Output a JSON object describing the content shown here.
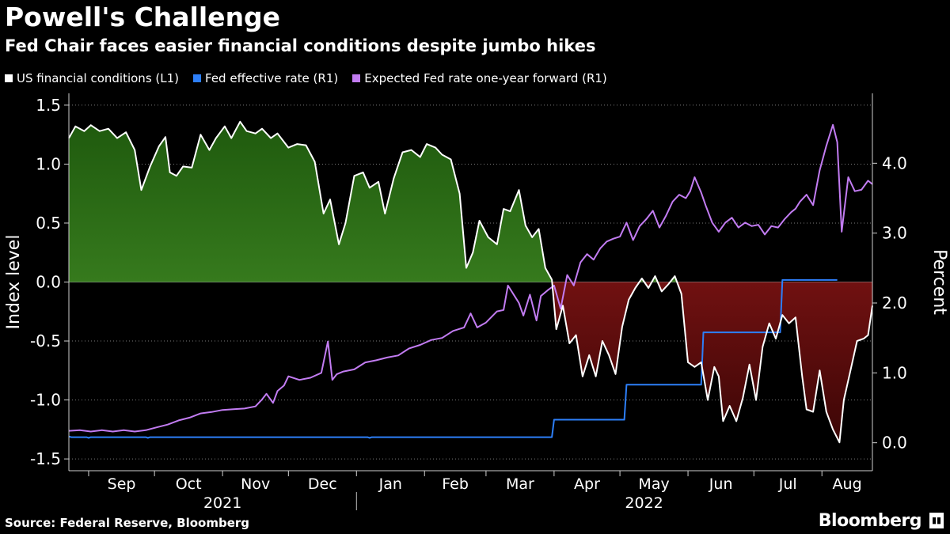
{
  "header": {
    "title": "Powell's Challenge",
    "subtitle": "Fed Chair faces easier financial conditions despite jumbo hikes"
  },
  "footer": {
    "source": "Source: Federal Reserve, Bloomberg",
    "brand": "Bloomberg"
  },
  "colors": {
    "background": "#000000",
    "fci_line": "#ffffff",
    "fed_rate": "#2d7ff9",
    "expected_rate": "#c27cf2",
    "positive_fill_top": "#1f5a0e",
    "positive_fill_bottom": "#4d9a2c",
    "negative_fill_top": "#a51c1c",
    "negative_fill_bottom": "#3c0606"
  },
  "chart_data": {
    "type": "line",
    "title": "Powell's Challenge",
    "subtitle": "Fed Chair faces easier financial conditions despite jumbo hikes",
    "ylabel_left": "Index level",
    "ylabel_right": "Percent",
    "ylim_left": [
      -1.6,
      1.6
    ],
    "ylim_right": [
      -0.4,
      5.0
    ],
    "yticks_left": [
      "1.5",
      "1.0",
      "0.5",
      "0.0",
      "-0.5",
      "-1.0",
      "-1.5"
    ],
    "yticks_left_values": [
      1.5,
      1.0,
      0.5,
      0.0,
      -0.5,
      -1.0,
      -1.5
    ],
    "yticks_right": [
      "4.0",
      "3.0",
      "2.0",
      "1.0",
      "0.0"
    ],
    "yticks_right_values": [
      4.0,
      3.0,
      2.0,
      1.0,
      0.0
    ],
    "month_labels": [
      "Sep",
      "Oct",
      "Nov",
      "Dec",
      "Jan",
      "Feb",
      "Mar",
      "Apr",
      "May",
      "Jun",
      "Jul",
      "Aug"
    ],
    "year_labels": [
      "2021",
      "2022"
    ],
    "grid": "dotted horizontal",
    "x_domain_days": [
      0,
      366
    ],
    "x_note": "x values are days since 2021-08-23",
    "series": [
      {
        "name": "US financial conditions (L1)",
        "axis": "left",
        "values": [
          [
            0,
            1.22
          ],
          [
            3,
            1.32
          ],
          [
            7,
            1.28
          ],
          [
            10,
            1.33
          ],
          [
            14,
            1.28
          ],
          [
            18,
            1.3
          ],
          [
            22,
            1.22
          ],
          [
            26,
            1.27
          ],
          [
            30,
            1.12
          ],
          [
            33,
            0.78
          ],
          [
            37,
            0.98
          ],
          [
            41,
            1.15
          ],
          [
            44,
            1.23
          ],
          [
            46,
            0.93
          ],
          [
            49,
            0.9
          ],
          [
            52,
            0.98
          ],
          [
            56,
            0.97
          ],
          [
            60,
            1.25
          ],
          [
            64,
            1.12
          ],
          [
            67,
            1.22
          ],
          [
            71,
            1.32
          ],
          [
            74,
            1.22
          ],
          [
            78,
            1.36
          ],
          [
            81,
            1.28
          ],
          [
            85,
            1.26
          ],
          [
            88,
            1.3
          ],
          [
            92,
            1.22
          ],
          [
            95,
            1.26
          ],
          [
            100,
            1.14
          ],
          [
            104,
            1.17
          ],
          [
            108,
            1.16
          ],
          [
            112,
            1.02
          ],
          [
            116,
            0.58
          ],
          [
            119,
            0.7
          ],
          [
            123,
            0.32
          ],
          [
            126,
            0.5
          ],
          [
            130,
            0.9
          ],
          [
            134,
            0.93
          ],
          [
            137,
            0.8
          ],
          [
            141,
            0.85
          ],
          [
            144,
            0.58
          ],
          [
            148,
            0.88
          ],
          [
            152,
            1.1
          ],
          [
            156,
            1.12
          ],
          [
            160,
            1.06
          ],
          [
            163,
            1.17
          ],
          [
            167,
            1.14
          ],
          [
            170,
            1.08
          ],
          [
            174,
            1.04
          ],
          [
            178,
            0.75
          ],
          [
            181,
            0.12
          ],
          [
            184,
            0.25
          ],
          [
            187,
            0.52
          ],
          [
            191,
            0.38
          ],
          [
            195,
            0.32
          ],
          [
            198,
            0.62
          ],
          [
            201,
            0.6
          ],
          [
            205,
            0.78
          ],
          [
            208,
            0.48
          ],
          [
            211,
            0.38
          ],
          [
            214,
            0.45
          ],
          [
            217,
            0.12
          ],
          [
            220,
            0.02
          ],
          [
            222,
            -0.4
          ],
          [
            225,
            -0.2
          ],
          [
            228,
            -0.52
          ],
          [
            231,
            -0.45
          ],
          [
            234,
            -0.8
          ],
          [
            237,
            -0.62
          ],
          [
            240,
            -0.8
          ],
          [
            243,
            -0.5
          ],
          [
            246,
            -0.62
          ],
          [
            249,
            -0.78
          ],
          [
            252,
            -0.38
          ],
          [
            255,
            -0.15
          ],
          [
            258,
            -0.05
          ],
          [
            261,
            0.03
          ],
          [
            264,
            -0.05
          ],
          [
            267,
            0.05
          ],
          [
            270,
            -0.08
          ],
          [
            273,
            -0.02
          ],
          [
            276,
            0.05
          ],
          [
            279,
            -0.1
          ],
          [
            282,
            -0.68
          ],
          [
            285,
            -0.72
          ],
          [
            288,
            -0.68
          ],
          [
            291,
            -1.0
          ],
          [
            294,
            -0.72
          ],
          [
            296,
            -0.8
          ],
          [
            298,
            -1.18
          ],
          [
            301,
            -1.05
          ],
          [
            304,
            -1.18
          ],
          [
            307,
            -0.98
          ],
          [
            310,
            -0.7
          ],
          [
            313,
            -1.0
          ],
          [
            316,
            -0.55
          ],
          [
            319,
            -0.35
          ],
          [
            322,
            -0.48
          ],
          [
            325,
            -0.28
          ],
          [
            328,
            -0.35
          ],
          [
            331,
            -0.3
          ],
          [
            334,
            -0.8
          ],
          [
            336,
            -1.08
          ],
          [
            339,
            -1.1
          ],
          [
            342,
            -0.75
          ],
          [
            345,
            -1.1
          ],
          [
            348,
            -1.25
          ],
          [
            351,
            -1.36
          ],
          [
            353,
            -1.0
          ],
          [
            356,
            -0.75
          ],
          [
            359,
            -0.5
          ],
          [
            362,
            -0.48
          ],
          [
            364,
            -0.45
          ],
          [
            366,
            -0.2
          ]
        ]
      },
      {
        "name": "Fed effective rate (R1)",
        "axis": "right",
        "values": [
          [
            0,
            0.09
          ],
          [
            1,
            0.08
          ],
          [
            8,
            0.08
          ],
          [
            9,
            0.07
          ],
          [
            10,
            0.08
          ],
          [
            14,
            0.08
          ],
          [
            35,
            0.08
          ],
          [
            36,
            0.07
          ],
          [
            37,
            0.08
          ],
          [
            60,
            0.08
          ],
          [
            136,
            0.08
          ],
          [
            137,
            0.07
          ],
          [
            138,
            0.08
          ],
          [
            220,
            0.08
          ],
          [
            221,
            0.33
          ],
          [
            253,
            0.33
          ],
          [
            254,
            0.83
          ],
          [
            288,
            0.83
          ],
          [
            289,
            1.58
          ],
          [
            324,
            1.58
          ],
          [
            325,
            2.33
          ],
          [
            350,
            2.33
          ]
        ]
      },
      {
        "name": "Expected Fed rate one-year forward (R1)",
        "axis": "right",
        "values": [
          [
            0,
            0.17
          ],
          [
            5,
            0.18
          ],
          [
            10,
            0.16
          ],
          [
            15,
            0.18
          ],
          [
            20,
            0.16
          ],
          [
            25,
            0.18
          ],
          [
            30,
            0.16
          ],
          [
            35,
            0.18
          ],
          [
            40,
            0.22
          ],
          [
            45,
            0.26
          ],
          [
            50,
            0.32
          ],
          [
            55,
            0.36
          ],
          [
            60,
            0.42
          ],
          [
            65,
            0.44
          ],
          [
            70,
            0.47
          ],
          [
            75,
            0.48
          ],
          [
            80,
            0.49
          ],
          [
            85,
            0.52
          ],
          [
            88,
            0.62
          ],
          [
            90,
            0.7
          ],
          [
            93,
            0.57
          ],
          [
            95,
            0.74
          ],
          [
            98,
            0.82
          ],
          [
            100,
            0.95
          ],
          [
            105,
            0.9
          ],
          [
            110,
            0.93
          ],
          [
            115,
            1.0
          ],
          [
            118,
            1.45
          ],
          [
            120,
            0.9
          ],
          [
            122,
            0.98
          ],
          [
            125,
            1.02
          ],
          [
            130,
            1.05
          ],
          [
            135,
            1.15
          ],
          [
            140,
            1.18
          ],
          [
            145,
            1.22
          ],
          [
            150,
            1.25
          ],
          [
            155,
            1.35
          ],
          [
            160,
            1.4
          ],
          [
            165,
            1.47
          ],
          [
            170,
            1.5
          ],
          [
            175,
            1.6
          ],
          [
            180,
            1.65
          ],
          [
            183,
            1.85
          ],
          [
            186,
            1.65
          ],
          [
            190,
            1.72
          ],
          [
            195,
            1.88
          ],
          [
            198,
            1.9
          ],
          [
            200,
            2.25
          ],
          [
            203,
            2.1
          ],
          [
            205,
            2.0
          ],
          [
            207,
            1.82
          ],
          [
            210,
            2.12
          ],
          [
            213,
            1.75
          ],
          [
            215,
            2.1
          ],
          [
            218,
            2.18
          ],
          [
            221,
            2.25
          ],
          [
            224,
            1.92
          ],
          [
            227,
            2.4
          ],
          [
            230,
            2.25
          ],
          [
            233,
            2.58
          ],
          [
            236,
            2.7
          ],
          [
            239,
            2.62
          ],
          [
            242,
            2.78
          ],
          [
            245,
            2.88
          ],
          [
            248,
            2.92
          ],
          [
            251,
            2.95
          ],
          [
            254,
            3.15
          ],
          [
            257,
            2.9
          ],
          [
            260,
            3.1
          ],
          [
            263,
            3.2
          ],
          [
            266,
            3.32
          ],
          [
            269,
            3.08
          ],
          [
            272,
            3.25
          ],
          [
            275,
            3.45
          ],
          [
            278,
            3.55
          ],
          [
            281,
            3.5
          ],
          [
            283,
            3.6
          ],
          [
            285,
            3.8
          ],
          [
            288,
            3.58
          ],
          [
            290,
            3.4
          ],
          [
            293,
            3.15
          ],
          [
            296,
            3.02
          ],
          [
            299,
            3.15
          ],
          [
            302,
            3.22
          ],
          [
            305,
            3.08
          ],
          [
            308,
            3.15
          ],
          [
            311,
            3.1
          ],
          [
            314,
            3.12
          ],
          [
            317,
            2.98
          ],
          [
            320,
            3.1
          ],
          [
            323,
            3.08
          ],
          [
            326,
            3.2
          ],
          [
            329,
            3.3
          ],
          [
            331,
            3.35
          ],
          [
            333,
            3.45
          ],
          [
            336,
            3.55
          ],
          [
            339,
            3.4
          ],
          [
            342,
            3.9
          ],
          [
            345,
            4.25
          ],
          [
            348,
            4.55
          ],
          [
            350,
            4.3
          ],
          [
            352,
            3.02
          ],
          [
            355,
            3.8
          ],
          [
            358,
            3.6
          ],
          [
            361,
            3.62
          ],
          [
            364,
            3.75
          ],
          [
            366,
            3.7
          ]
        ]
      }
    ]
  }
}
